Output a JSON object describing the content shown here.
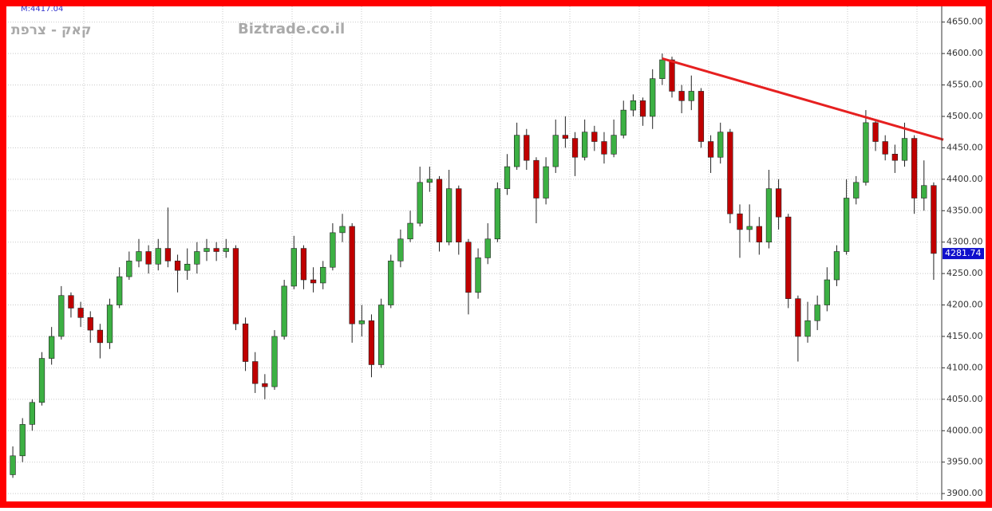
{
  "chart_data": {
    "type": "candlestick",
    "title": "קאק - צרפת",
    "watermark": "Biztrade.co.il",
    "corner_label": "M:4417.04",
    "last_value": 4281.74,
    "up_color": "#3cb043",
    "down_color": "#c00000",
    "ylim": [
      3890,
      4675
    ],
    "yticks": [
      {
        "value": 3900,
        "label": "3900.00"
      },
      {
        "value": 3950,
        "label": "3950.00"
      },
      {
        "value": 4000,
        "label": "4000.00"
      },
      {
        "value": 4050,
        "label": "4050.00"
      },
      {
        "value": 4100,
        "label": "4100.00"
      },
      {
        "value": 4150,
        "label": "4150.00"
      },
      {
        "value": 4200,
        "label": "4200.00"
      },
      {
        "value": 4250,
        "label": "4250.00"
      },
      {
        "value": 4300,
        "label": "4300.00"
      },
      {
        "value": 4350,
        "label": "4350.00"
      },
      {
        "value": 4400,
        "label": "4400.00"
      },
      {
        "value": 4450,
        "label": "4450.00"
      },
      {
        "value": 4500,
        "label": "4500.00"
      },
      {
        "value": 4550,
        "label": "4550.00"
      },
      {
        "value": 4600,
        "label": "4600.00"
      },
      {
        "value": 4650,
        "label": "4650.00"
      }
    ],
    "grid": true,
    "trendline": {
      "start": [
        67,
        4592
      ],
      "end": [
        96,
        4463
      ],
      "color": "#e62020"
    },
    "open": [
      3930,
      3960,
      4010,
      4045,
      4115,
      4150,
      4215,
      4195,
      4180,
      4160,
      4140,
      4200,
      4245,
      4270,
      4285,
      4265,
      4290,
      4270,
      4255,
      4265,
      4285,
      4290,
      4285,
      4290,
      4170,
      4110,
      4075,
      4070,
      4150,
      4230,
      4290,
      4240,
      4235,
      4260,
      4315,
      4325,
      4170,
      4175,
      4105,
      4200,
      4270,
      4305,
      4330,
      4395,
      4400,
      4300,
      4385,
      4300,
      4220,
      4275,
      4305,
      4385,
      4420,
      4470,
      4430,
      4370,
      4420,
      4470,
      4465,
      4435,
      4475,
      4460,
      4440,
      4470,
      4510,
      4525,
      4500,
      4560,
      4590,
      4540,
      4525,
      4540,
      4460,
      4435,
      4475,
      4345,
      4320,
      4325,
      4300,
      4385,
      4340,
      4210,
      4150,
      4175,
      4200,
      4240,
      4285,
      4370,
      4395,
      4490,
      4460,
      4440,
      4430,
      4465,
      4370,
      4390
    ],
    "high": [
      3975,
      4020,
      4050,
      4125,
      4165,
      4230,
      4220,
      4205,
      4190,
      4170,
      4210,
      4260,
      4285,
      4305,
      4295,
      4305,
      4355,
      4280,
      4290,
      4300,
      4305,
      4300,
      4305,
      4295,
      4180,
      4125,
      4090,
      4160,
      4240,
      4310,
      4295,
      4260,
      4270,
      4330,
      4345,
      4330,
      4200,
      4185,
      4210,
      4280,
      4320,
      4350,
      4420,
      4420,
      4405,
      4415,
      4390,
      4305,
      4290,
      4330,
      4395,
      4440,
      4490,
      4480,
      4435,
      4435,
      4495,
      4500,
      4475,
      4495,
      4485,
      4475,
      4495,
      4525,
      4535,
      4530,
      4575,
      4600,
      4595,
      4550,
      4565,
      4545,
      4470,
      4490,
      4480,
      4360,
      4360,
      4340,
      4415,
      4400,
      4345,
      4215,
      4205,
      4215,
      4260,
      4295,
      4400,
      4405,
      4510,
      4495,
      4470,
      4455,
      4490,
      4470,
      4430,
      4395
    ],
    "low": [
      3925,
      3950,
      4000,
      4040,
      4105,
      4145,
      4180,
      4165,
      4140,
      4115,
      4130,
      4195,
      4240,
      4260,
      4250,
      4255,
      4260,
      4220,
      4240,
      4250,
      4270,
      4270,
      4275,
      4160,
      4095,
      4060,
      4050,
      4065,
      4145,
      4225,
      4225,
      4220,
      4225,
      4255,
      4300,
      4140,
      4150,
      4085,
      4100,
      4195,
      4260,
      4300,
      4325,
      4380,
      4285,
      4295,
      4280,
      4185,
      4210,
      4265,
      4300,
      4375,
      4415,
      4415,
      4330,
      4360,
      4410,
      4450,
      4405,
      4430,
      4445,
      4425,
      4435,
      4465,
      4500,
      4485,
      4480,
      4550,
      4530,
      4505,
      4510,
      4450,
      4410,
      4425,
      4330,
      4275,
      4300,
      4280,
      4290,
      4320,
      4195,
      4110,
      4140,
      4160,
      4190,
      4230,
      4280,
      4360,
      4390,
      4445,
      4430,
      4410,
      4420,
      4345,
      4350,
      4240
    ],
    "close": [
      3960,
      4010,
      4045,
      4115,
      4150,
      4215,
      4195,
      4180,
      4160,
      4140,
      4200,
      4245,
      4270,
      4285,
      4265,
      4290,
      4270,
      4255,
      4265,
      4285,
      4290,
      4285,
      4290,
      4170,
      4110,
      4075,
      4070,
      4150,
      4230,
      4290,
      4240,
      4235,
      4260,
      4315,
      4325,
      4170,
      4175,
      4105,
      4200,
      4270,
      4305,
      4330,
      4395,
      4400,
      4300,
      4385,
      4300,
      4220,
      4275,
      4305,
      4385,
      4420,
      4470,
      4430,
      4370,
      4420,
      4470,
      4465,
      4435,
      4475,
      4460,
      4440,
      4470,
      4510,
      4525,
      4500,
      4560,
      4590,
      4540,
      4525,
      4540,
      4460,
      4435,
      4475,
      4345,
      4320,
      4325,
      4300,
      4385,
      4340,
      4210,
      4150,
      4175,
      4200,
      4240,
      4285,
      4370,
      4395,
      4490,
      4460,
      4440,
      4430,
      4465,
      4370,
      4390,
      4282
    ]
  }
}
